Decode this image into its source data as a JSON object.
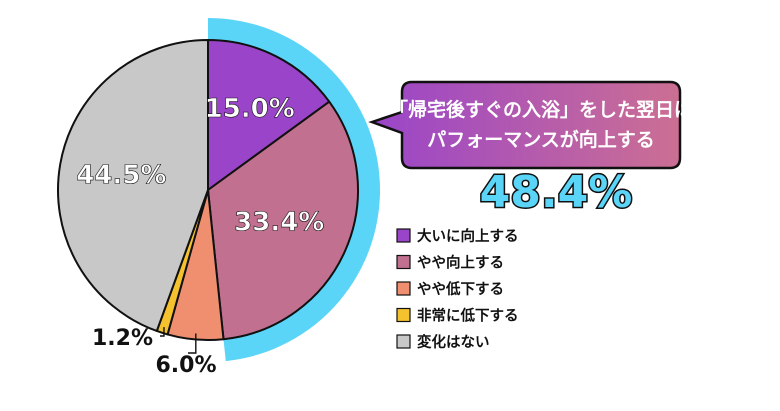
{
  "chart_data": {
    "type": "pie",
    "slices": [
      {
        "label": "大いに向上する",
        "value": 15.0,
        "display": "15.0%",
        "color": "#9a45c9"
      },
      {
        "label": "やや向上する",
        "value": 33.4,
        "display": "33.4%",
        "color": "#c2708f"
      },
      {
        "label": "やや低下する",
        "value": 6.0,
        "display": "6.0%",
        "color": "#f08f6f"
      },
      {
        "label": "非常に低下する",
        "value": 1.2,
        "display": "1.2%",
        "color": "#f5c22f"
      },
      {
        "label": "変化はない",
        "value": 44.5,
        "display": "44.5%",
        "color": "#c8c8c8"
      }
    ],
    "highlight": {
      "total": "48.4%",
      "slices": [
        0,
        1
      ],
      "color": "#5ad4f7"
    },
    "legend_position": "right"
  },
  "callout": {
    "line1": "「帰宅後すぐの入浴」をした翌日は",
    "line2": "パフォーマンスが向上する",
    "gradient_start": "#9a45c9",
    "gradient_end": "#cc6f93"
  },
  "headline_value": "48.4%"
}
